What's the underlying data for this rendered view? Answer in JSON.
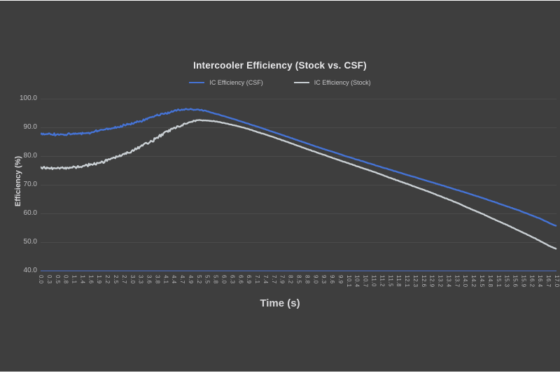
{
  "page": {
    "background_color": "#3e3e3e",
    "frame_color": "#ffffff"
  },
  "chart": {
    "title": "Intercooler Efficiency (Stock vs. CSF)",
    "x_axis_title": "Time (s)",
    "y_axis_title": "Efficiency (%)",
    "legend": [
      {
        "label": "IC Efficiency (CSF)",
        "color": "#4573d5"
      },
      {
        "label": "IC Efficiency (Stock)",
        "color": "#c9cfd3"
      }
    ]
  },
  "chart_data": {
    "type": "line",
    "title": "Intercooler Efficiency (Stock vs. CSF)",
    "xlabel": "Time (s)",
    "ylabel": "Efficiency (%)",
    "xlim": [
      0,
      17
    ],
    "ylim": [
      40,
      100
    ],
    "grid": true,
    "legend_position": "top-center",
    "gridline_color": "rgba(255,255,255,0.07)",
    "axis_line_color": "#4a69b4",
    "yticks": [
      "100.0",
      "90.0",
      "80.0",
      "70.0",
      "60.0",
      "50.0",
      "40.0"
    ],
    "xticks": [
      "0.0",
      "0.3",
      "0.5",
      "0.8",
      "1.1",
      "1.4",
      "1.6",
      "1.9",
      "2.2",
      "2.5",
      "2.7",
      "3.0",
      "3.3",
      "3.6",
      "3.8",
      "4.1",
      "4.4",
      "4.7",
      "4.9",
      "5.2",
      "5.5",
      "5.8",
      "6.0",
      "6.3",
      "6.6",
      "6.9",
      "7.1",
      "7.4",
      "7.7",
      "7.9",
      "8.2",
      "8.5",
      "8.8",
      "9.0",
      "9.3",
      "9.6",
      "9.9",
      "10.1",
      "10.4",
      "10.7",
      "11.0",
      "11.2",
      "11.5",
      "11.8",
      "12.1",
      "12.3",
      "12.6",
      "12.9",
      "13.2",
      "13.4",
      "13.7",
      "14.0",
      "14.2",
      "14.5",
      "14.8",
      "15.1",
      "15.3",
      "15.6",
      "15.9",
      "16.2",
      "16.4",
      "16.7",
      "17.0"
    ],
    "series": [
      {
        "name": "IC Efficiency (CSF)",
        "color": "#4573d5",
        "noise_amplitude": 0.55,
        "points": [
          [
            0,
            87.6
          ],
          [
            0.5,
            87.5
          ],
          [
            1,
            87.7
          ],
          [
            1.5,
            88.1
          ],
          [
            2,
            88.9
          ],
          [
            2.5,
            90
          ],
          [
            3,
            91.4
          ],
          [
            3.5,
            93
          ],
          [
            4,
            94.6
          ],
          [
            4.5,
            95.7
          ],
          [
            4.9,
            96.3
          ],
          [
            5.3,
            96
          ],
          [
            5.7,
            95
          ],
          [
            6,
            94
          ],
          [
            6.5,
            92.4
          ],
          [
            7,
            90.7
          ],
          [
            7.5,
            89
          ],
          [
            8,
            87.2
          ],
          [
            8.5,
            85.4
          ],
          [
            9,
            83.6
          ],
          [
            9.5,
            81.9
          ],
          [
            10,
            80.2
          ],
          [
            10.5,
            78.5
          ],
          [
            11,
            76.9
          ],
          [
            11.5,
            75.3
          ],
          [
            12,
            73.7
          ],
          [
            12.5,
            72.1
          ],
          [
            13,
            70.5
          ],
          [
            13.5,
            68.9
          ],
          [
            14,
            67.3
          ],
          [
            14.5,
            65.6
          ],
          [
            15,
            63.8
          ],
          [
            15.5,
            62
          ],
          [
            16,
            60.1
          ],
          [
            16.5,
            58
          ],
          [
            17,
            55.7
          ]
        ]
      },
      {
        "name": "IC Efficiency (Stock)",
        "color": "#c9cfd3",
        "noise_amplitude": 0.75,
        "points": [
          [
            0,
            75.8
          ],
          [
            0.5,
            75.7
          ],
          [
            1,
            76
          ],
          [
            1.5,
            76.7
          ],
          [
            2,
            77.9
          ],
          [
            2.5,
            79.6
          ],
          [
            3,
            81.8
          ],
          [
            3.5,
            84.5
          ],
          [
            4,
            87.5
          ],
          [
            4.5,
            90.2
          ],
          [
            5,
            91.9
          ],
          [
            5.3,
            92.5
          ],
          [
            5.7,
            92.2
          ],
          [
            6,
            91.6
          ],
          [
            6.5,
            90.4
          ],
          [
            7,
            88.9
          ],
          [
            7.5,
            87.2
          ],
          [
            8,
            85.4
          ],
          [
            8.5,
            83.5
          ],
          [
            9,
            81.6
          ],
          [
            9.5,
            79.8
          ],
          [
            10,
            78
          ],
          [
            10.5,
            76.2
          ],
          [
            11,
            74.4
          ],
          [
            11.5,
            72.5
          ],
          [
            12,
            70.6
          ],
          [
            12.5,
            68.7
          ],
          [
            13,
            66.7
          ],
          [
            13.5,
            64.6
          ],
          [
            14,
            62.4
          ],
          [
            14.5,
            60.1
          ],
          [
            15,
            57.7
          ],
          [
            15.5,
            55.3
          ],
          [
            16,
            52.8
          ],
          [
            16.5,
            50.2
          ],
          [
            17,
            47.7
          ]
        ]
      }
    ]
  }
}
